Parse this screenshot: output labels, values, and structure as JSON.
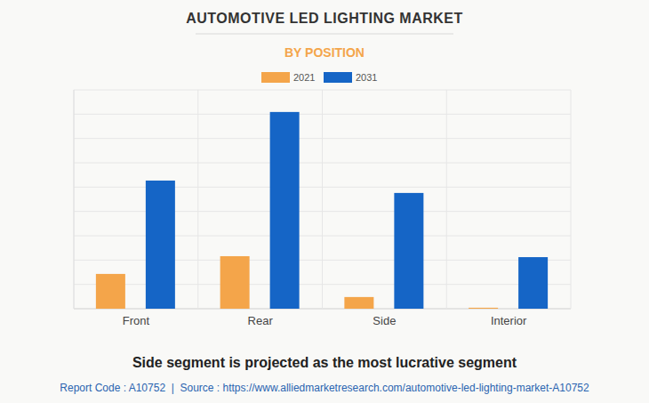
{
  "chart_data": {
    "type": "bar",
    "title": "AUTOMOTIVE LED LIGHTING MARKET",
    "subtitle": "BY POSITION",
    "categories": [
      "Front",
      "Rear",
      "Side",
      "Interior"
    ],
    "series": [
      {
        "name": "2021",
        "color": "#f4a54a",
        "values": [
          1.43,
          2.16,
          0.48,
          0.04
        ]
      },
      {
        "name": "2031",
        "color": "#1565c6",
        "values": [
          5.27,
          8.09,
          4.76,
          2.12
        ]
      }
    ],
    "ylim": [
      0,
      9
    ],
    "yticks": [
      0,
      1,
      2,
      3,
      4,
      5,
      6,
      7,
      8,
      9
    ],
    "grid": true,
    "tick_labels": "x",
    "legend": "top",
    "caption": "Side segment is projected as the most lucrative segment",
    "source": "Report Code : A10752  |  Source : https://www.alliedmarketresearch.com/automotive-led-lighting-market-A10752"
  }
}
